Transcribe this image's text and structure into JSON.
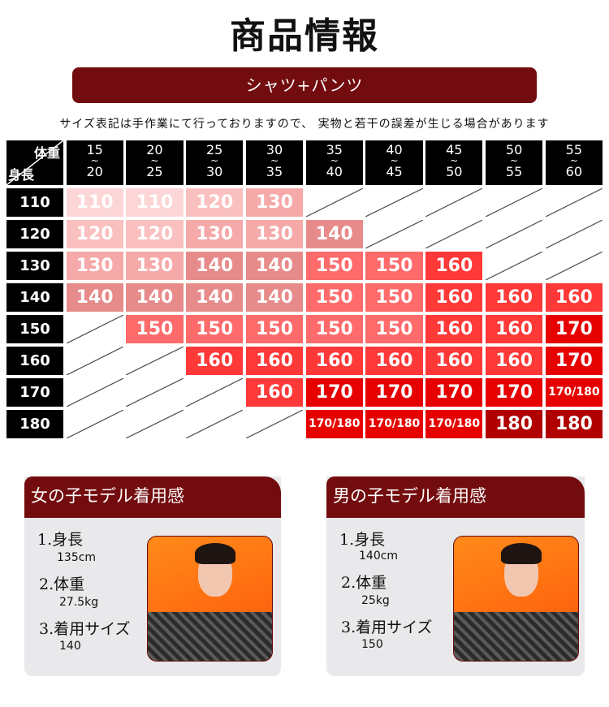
{
  "title": "商品情報",
  "banner": "シャツ+パンツ",
  "note": "サイズ表記は手作業にて行っておりますので、 実物と若干の誤差が生じる場合があります",
  "table": {
    "corner_weight": "体重",
    "corner_height": "身長",
    "weights": [
      [
        "15",
        "20"
      ],
      [
        "20",
        "25"
      ],
      [
        "25",
        "30"
      ],
      [
        "30",
        "35"
      ],
      [
        "35",
        "40"
      ],
      [
        "40",
        "45"
      ],
      [
        "45",
        "50"
      ],
      [
        "50",
        "55"
      ],
      [
        "55",
        "60"
      ]
    ],
    "tilde": "~",
    "rows": [
      {
        "height": "110",
        "cells": [
          "110",
          "110",
          "120",
          "130",
          null,
          null,
          null,
          null,
          null
        ]
      },
      {
        "height": "120",
        "cells": [
          "120",
          "120",
          "130",
          "130",
          "140",
          null,
          null,
          null,
          null
        ]
      },
      {
        "height": "130",
        "cells": [
          "130",
          "130",
          "140",
          "140",
          "150",
          "150",
          "160",
          null,
          null
        ]
      },
      {
        "height": "140",
        "cells": [
          "140",
          "140",
          "140",
          "140",
          "150",
          "150",
          "160",
          "160",
          "160"
        ]
      },
      {
        "height": "150",
        "cells": [
          null,
          "150",
          "150",
          "150",
          "150",
          "150",
          "160",
          "160",
          "170"
        ]
      },
      {
        "height": "160",
        "cells": [
          null,
          null,
          "160",
          "160",
          "160",
          "160",
          "160",
          "160",
          "170"
        ]
      },
      {
        "height": "170",
        "cells": [
          null,
          null,
          null,
          "160",
          "170",
          "170",
          "170",
          "170",
          "170/180"
        ]
      },
      {
        "height": "180",
        "cells": [
          null,
          null,
          null,
          null,
          "170/180",
          "170/180",
          "170/180",
          "180",
          "180"
        ]
      }
    ],
    "colors": {
      "110": "#fcd6d6",
      "120": "#f9c0bf",
      "130": "#f5a9a8",
      "140": "#e68b8a",
      "150": "#ff6a6a",
      "160": "#ff3838",
      "170": "#e60000",
      "170/180": "#e60000",
      "180": "#b00000"
    }
  },
  "models": [
    {
      "title": "女の子モデル着用感",
      "height_label": "1.身長",
      "height": "135cm",
      "weight_label": "2.体重",
      "weight": "27.5kg",
      "size_label": "3.着用サイズ",
      "size": "140"
    },
    {
      "title": "男の子モデル着用感",
      "height_label": "1.身長",
      "height": "140cm",
      "weight_label": "2.体重",
      "weight": "25kg",
      "size_label": "3.着用サイズ",
      "size": "150"
    }
  ]
}
